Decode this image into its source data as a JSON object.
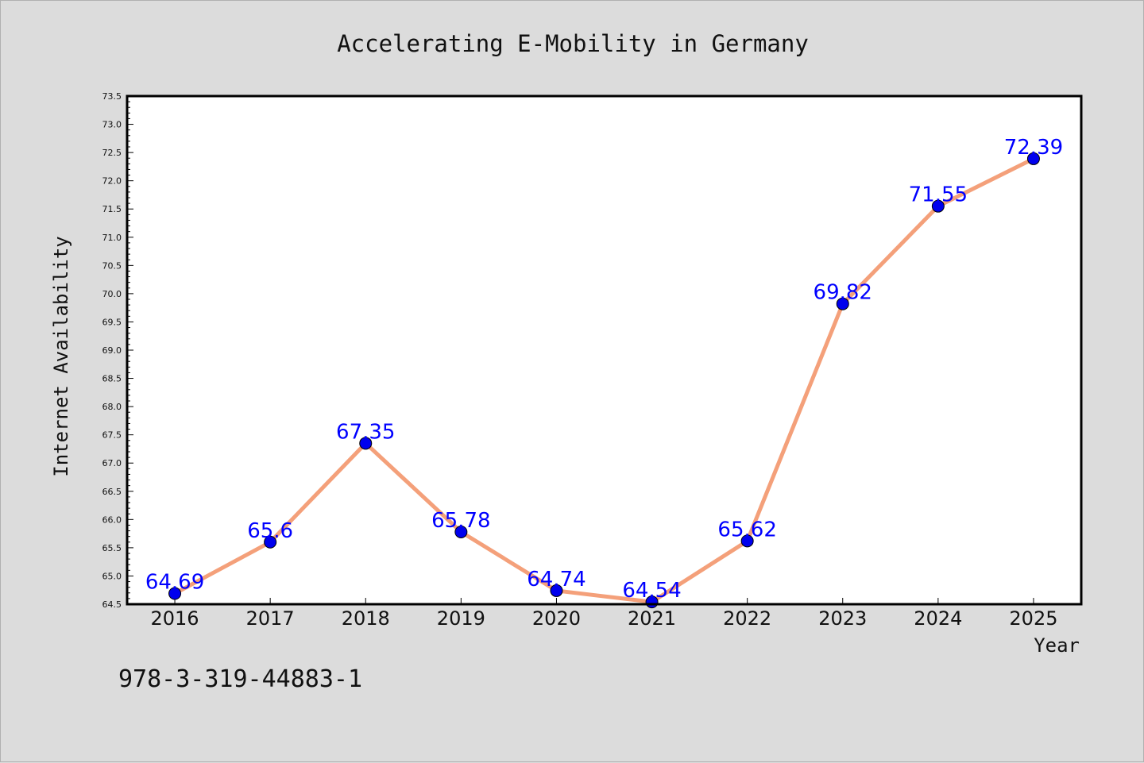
{
  "chart_data": {
    "type": "line",
    "title": "Accelerating E-Mobility in Germany",
    "xlabel": "Year",
    "ylabel": "Internet Availability",
    "categories": [
      "2016",
      "2017",
      "2018",
      "2019",
      "2020",
      "2021",
      "2022",
      "2023",
      "2024",
      "2025"
    ],
    "values": [
      64.69,
      65.6,
      67.35,
      65.78,
      64.74,
      64.54,
      65.62,
      69.82,
      71.55,
      72.39
    ],
    "data_labels": [
      "64.69",
      "65.6",
      "67.35",
      "65.78",
      "64.74",
      "64.54",
      "65.62",
      "69.82",
      "71.55",
      "72.39"
    ],
    "ylim": [
      64.5,
      73.5
    ],
    "yticks": [
      "64.5",
      "65.0",
      "65.5",
      "66.0",
      "66.5",
      "67.0",
      "67.5",
      "68.0",
      "68.5",
      "69.0",
      "69.5",
      "70.0",
      "70.5",
      "71.0",
      "71.5",
      "72.0",
      "72.5",
      "73.0",
      "73.5"
    ],
    "grid": false,
    "line_color": "#f4a07a",
    "marker_color": "#0000ee",
    "label_color": "#0000ff",
    "plot_background": "#ffffff",
    "page_background": "#dcdcdc"
  },
  "footer": {
    "isbn": "978-3-319-44883-1"
  }
}
